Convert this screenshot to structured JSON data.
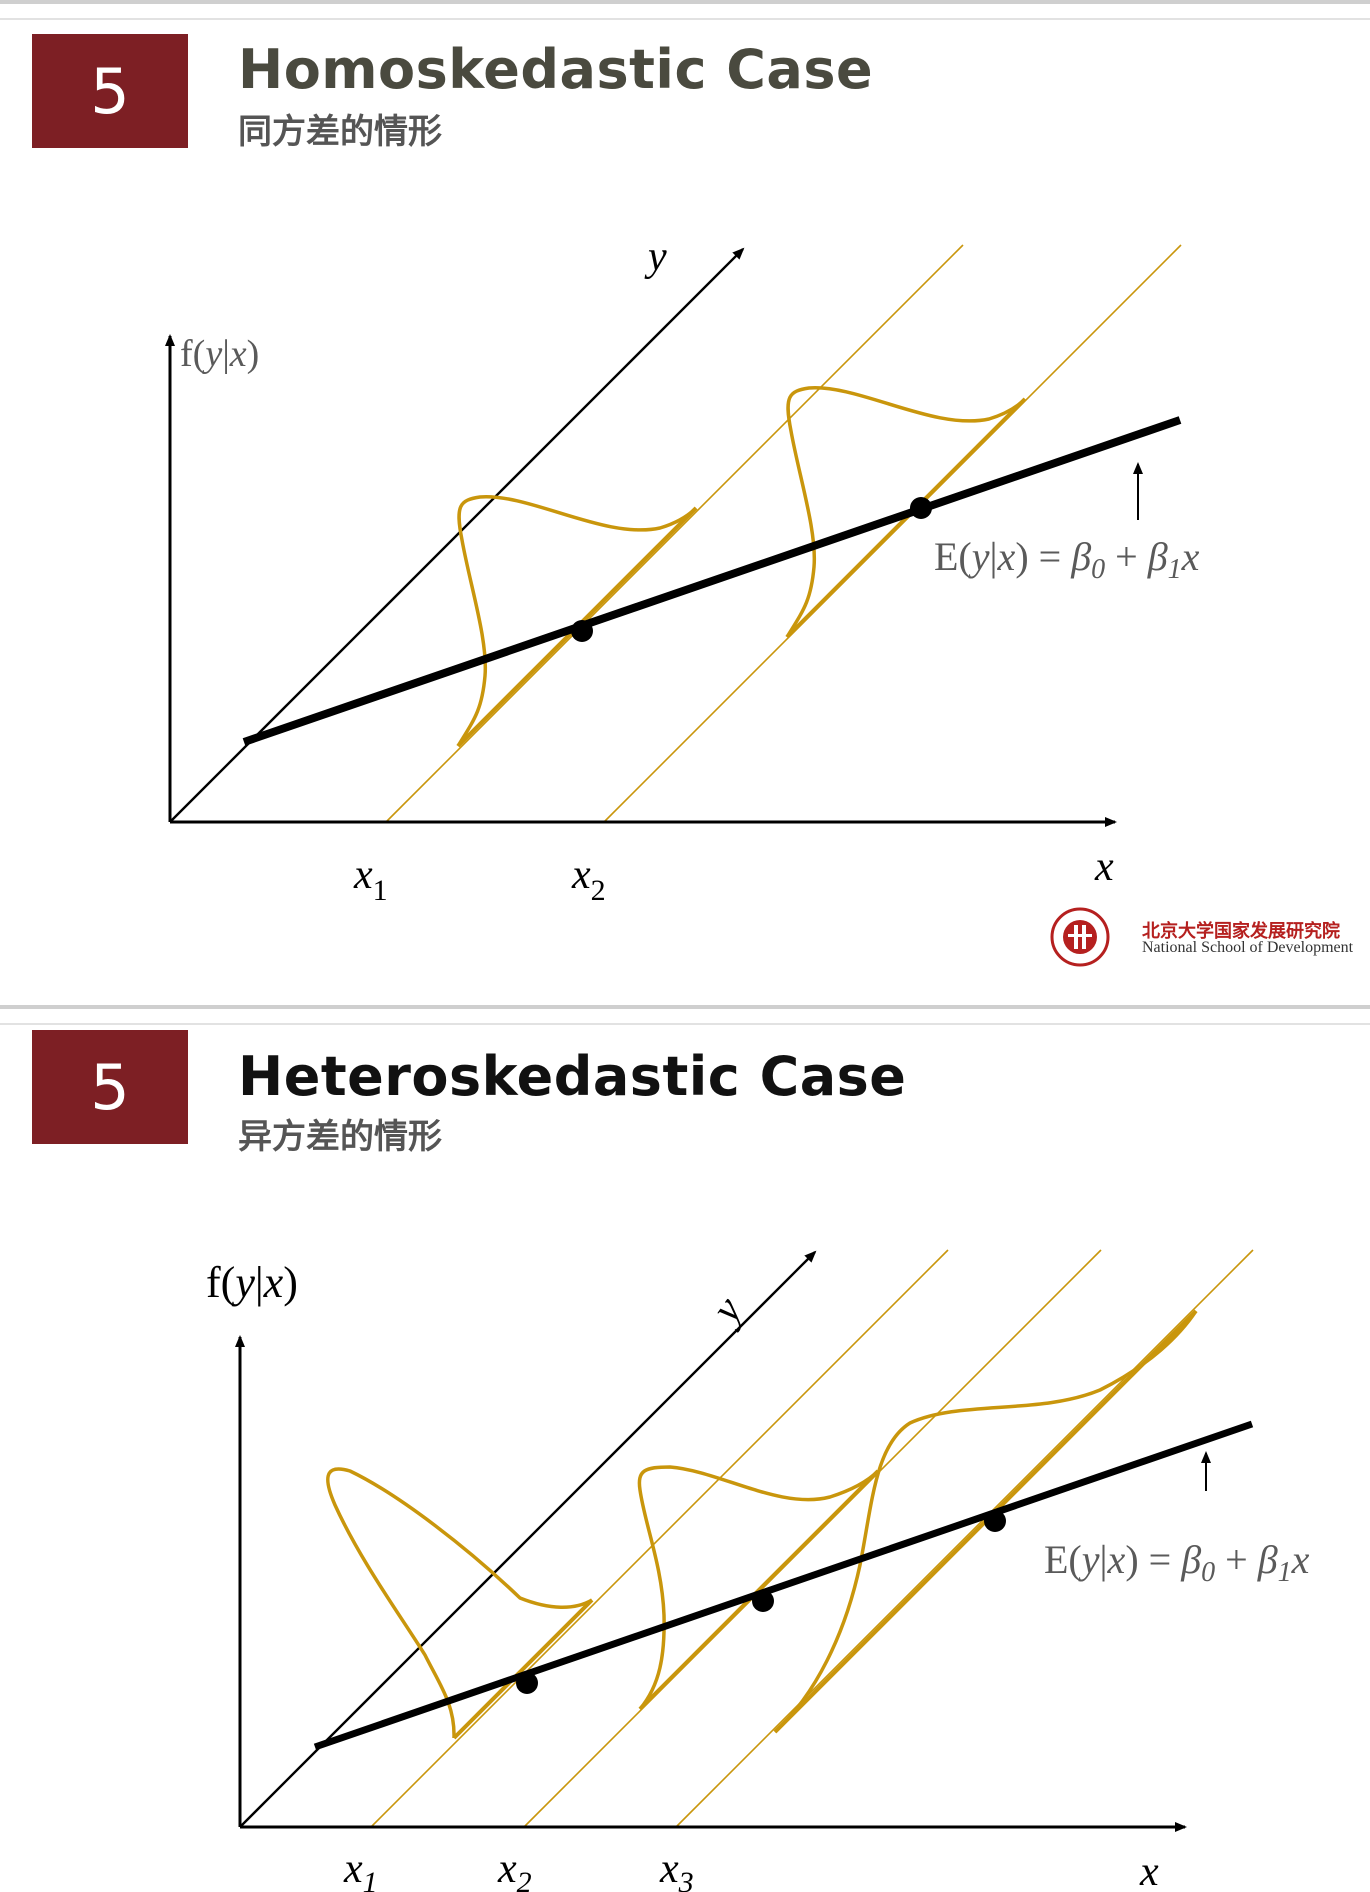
{
  "slide1": {
    "number": "5",
    "title": "Homoskedastic Case",
    "subtitle": "同方差的情形",
    "diagram": {
      "y_axis_label": "f(y|x)",
      "depth_axis_label": "y",
      "x_axis_label": "x",
      "x_ticks": [
        {
          "base": "x",
          "sub": "1"
        },
        {
          "base": "x",
          "sub": "2"
        }
      ],
      "equation": "E(y|x) = β0 + β1x"
    },
    "logo": {
      "name_zh": "北京大学国家发展研究院",
      "name_en": "National School of Development"
    }
  },
  "slide2": {
    "number": "5",
    "title": "Heteroskedastic Case",
    "subtitle": "异方差的情形",
    "diagram": {
      "y_axis_label": "f(y|x)",
      "depth_axis_label": "y",
      "x_axis_label": "x",
      "x_ticks": [
        {
          "base": "x",
          "sub": "1"
        },
        {
          "base": "x",
          "sub": "2"
        },
        {
          "base": "x",
          "sub": "3"
        }
      ],
      "equation": "E(y|x) = β0 + β1x"
    }
  },
  "colors": {
    "number_box": "#7d1f24",
    "title_slide1": "#4a4a3f",
    "title_slide2": "#111111",
    "curve": "#c9960c",
    "axis": "#000000",
    "label_gray": "#5a5a5a"
  }
}
